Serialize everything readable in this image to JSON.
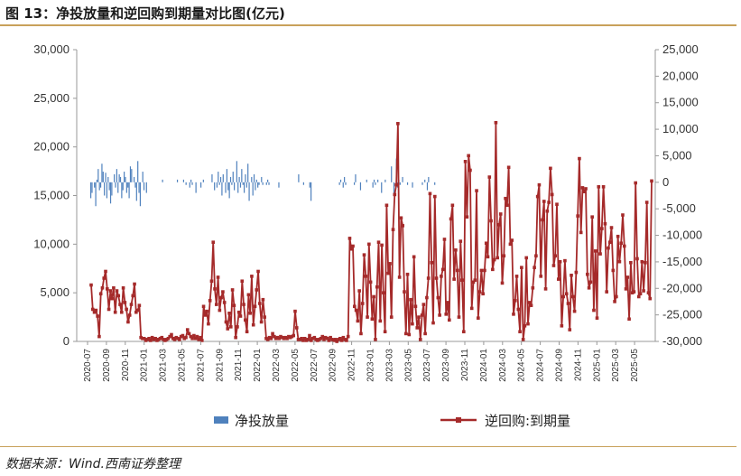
{
  "header": {
    "title": "图 13：净投放量和逆回购到期量对比图(亿元)"
  },
  "footer": {
    "source": "数据来源：Wind.西南证券整理"
  },
  "colors": {
    "bar": "#4f81bd",
    "line": "#a52a2a",
    "accent_rule": "#c8a15a"
  },
  "chart_data": {
    "type": "bar",
    "title": "",
    "legend_position": "bottom",
    "grid": false,
    "x_tick_labels": [
      "2020-07",
      "2020-09",
      "2020-11",
      "2021-01",
      "2021-03",
      "2021-05",
      "2021-07",
      "2021-09",
      "2021-11",
      "2022-01",
      "2022-03",
      "2022-05",
      "2022-07",
      "2022-09",
      "2022-11",
      "2023-01",
      "2023-03",
      "2023-05",
      "2023-07",
      "2023-09",
      "2023-11",
      "2024-01",
      "2024-03",
      "2024-05",
      "2024-07",
      "2024-09",
      "2024-11",
      "2025-01",
      "2025-03",
      "2025-05"
    ],
    "x_range": [
      "2020-07",
      "2025-06"
    ],
    "y_left": {
      "range": [
        0,
        30000
      ],
      "ticks": [
        "0",
        "5,000",
        "10,000",
        "15,000",
        "20,000",
        "25,000",
        "30,000"
      ]
    },
    "y_right": {
      "range": [
        -30000,
        25000
      ],
      "ticks": [
        "-30,000",
        "-25,000",
        "-20,000",
        "-15,000",
        "-10,000",
        "-5,000",
        "0",
        "5,000",
        "10,000",
        "15,000",
        "20,000",
        "25,000"
      ]
    },
    "series": [
      {
        "name": "净投放量",
        "type": "bar",
        "axis": "right",
        "values": [
          -3000,
          -2000,
          0,
          -1000,
          -4500,
          500,
          2500,
          -1500,
          -1000,
          3500,
          2000,
          -2500,
          1800,
          -3000,
          1000,
          -1500,
          -4000,
          -2500,
          0,
          1500,
          -1000,
          2500,
          -2000,
          1500,
          1000,
          -3000,
          -1500,
          2000,
          1000,
          -2000,
          -1000,
          -3000,
          3000,
          2500,
          0,
          1000,
          -1000,
          -3500,
          4000,
          -2000,
          -4500,
          0,
          2000,
          -1500,
          0,
          -2000,
          0,
          0,
          0,
          0,
          0,
          0,
          0,
          0,
          0,
          0,
          0,
          0,
          500,
          0,
          0,
          0,
          0,
          0,
          0,
          0,
          0,
          0,
          0,
          0,
          500,
          0,
          0,
          0,
          0,
          500,
          0,
          -500,
          0,
          0,
          -1000,
          500,
          -500,
          0,
          0,
          -2000,
          0,
          0,
          0,
          -1000,
          0,
          500,
          0,
          0,
          0,
          0,
          0,
          0,
          1500,
          0,
          -1500,
          0,
          -1000,
          2000,
          -500,
          1000,
          -2500,
          1500,
          0,
          -2000,
          2500,
          -1500,
          -3000,
          1000,
          -500,
          2000,
          -1500,
          0,
          4000,
          -2000,
          1000,
          -1000,
          2500,
          -500,
          -2000,
          1500,
          -1000,
          3500,
          -3500,
          0,
          1000,
          -2500,
          1500,
          -1500,
          500,
          -1000,
          -500,
          0,
          1000,
          -500,
          0,
          0,
          -500,
          500,
          -500,
          0,
          0,
          0,
          0,
          0,
          0,
          0,
          -1000,
          0,
          0,
          0,
          0,
          0,
          0,
          0,
          0,
          0,
          0,
          0,
          0,
          0,
          0,
          0,
          1500,
          0,
          0,
          0,
          -500,
          0,
          0,
          0,
          0,
          -1000,
          -3500,
          0,
          0,
          0,
          0,
          0,
          0,
          0,
          0,
          0,
          0,
          0,
          0,
          0,
          0,
          0,
          0,
          0,
          0,
          0,
          0,
          0,
          0,
          -500,
          500,
          0,
          -1000,
          1000,
          -500,
          0,
          0,
          0,
          0,
          0,
          0,
          -500,
          1500,
          0,
          0,
          0,
          -1500,
          0,
          0,
          0,
          0,
          500,
          0,
          0,
          0,
          0,
          -1000,
          500,
          -500,
          0,
          500,
          0,
          0,
          -2000,
          0,
          0,
          500,
          0,
          0,
          0,
          0,
          3000,
          0,
          -2500,
          0,
          4500,
          -1000,
          500,
          -500,
          0,
          1000,
          0,
          0,
          0,
          -500,
          0,
          0,
          0,
          -1000,
          0,
          0,
          0,
          0,
          0,
          0,
          0,
          -500,
          0,
          500,
          0,
          -1500,
          1000,
          0,
          0,
          0,
          0,
          -500,
          0,
          0,
          0,
          0,
          0,
          0,
          0,
          0,
          0,
          0,
          0,
          0,
          0,
          0,
          0,
          0,
          0,
          0,
          0,
          0,
          0,
          0,
          0,
          0,
          0,
          0,
          0,
          0,
          0,
          0,
          0,
          0,
          0,
          0,
          0,
          0,
          0,
          0,
          0,
          0,
          0,
          0,
          0,
          0,
          0,
          0,
          0,
          0,
          0,
          0,
          0,
          0,
          0,
          0,
          0,
          0,
          0,
          0,
          0,
          0,
          0,
          0,
          0,
          0,
          0,
          0,
          0,
          0,
          0,
          0,
          0,
          0,
          0,
          0,
          0,
          0,
          0,
          0,
          0,
          0,
          0,
          0,
          0,
          0,
          0,
          0,
          0,
          0,
          0,
          0,
          0,
          0,
          0,
          0,
          0,
          0,
          0,
          0,
          0,
          0,
          0,
          0,
          0,
          0,
          0,
          0,
          0,
          0,
          0,
          0,
          0,
          0,
          0,
          0,
          0,
          0,
          0,
          0,
          0,
          0,
          0,
          0,
          0,
          0,
          0,
          0,
          0,
          0,
          0,
          0,
          0,
          0,
          0,
          0,
          0,
          0,
          0,
          0,
          0,
          0,
          0,
          0,
          0,
          0,
          0,
          0,
          0,
          0,
          0,
          0,
          0,
          0,
          0,
          0,
          0,
          0,
          0,
          0,
          0,
          0,
          0,
          0,
          0,
          0,
          0,
          0,
          0,
          0,
          0,
          0,
          0,
          0,
          0,
          0
        ]
      },
      {
        "name": "逆回购:到期量",
        "type": "line",
        "axis": "left",
        "values": [
          5800,
          3300,
          3000,
          3200,
          2600,
          500,
          4900,
          5500,
          6500,
          7200,
          5400,
          3300,
          5200,
          4400,
          5500,
          3000,
          5200,
          4700,
          3800,
          3000,
          5500,
          4000,
          3300,
          2000,
          2700,
          3800,
          4700,
          5900,
          3000,
          3200,
          3700,
          400,
          300,
          300,
          100,
          200,
          300,
          100,
          400,
          200,
          300,
          100,
          200,
          300,
          400,
          200,
          100,
          200,
          300,
          500,
          700,
          300,
          200,
          400,
          300,
          200,
          500,
          600,
          300,
          400,
          1200,
          800,
          500,
          300,
          600,
          300,
          500,
          200,
          400,
          100,
          3600,
          2700,
          3100,
          1800,
          4200,
          6200,
          10200,
          5400,
          3800,
          6600,
          3200,
          4500,
          5100,
          4000,
          2000,
          1300,
          2900,
          1500,
          5300,
          3700,
          400,
          1500,
          3000,
          2600,
          6200,
          3800,
          2200,
          1000,
          4800,
          2900,
          6700,
          1700,
          3600,
          5300,
          7200,
          3900,
          2000,
          4300,
          2500,
          300,
          200,
          400,
          300,
          800,
          500,
          300,
          400,
          300,
          500,
          400,
          300,
          400,
          300,
          500,
          400,
          500,
          600,
          3100,
          1400,
          200,
          200,
          300,
          100,
          300,
          100,
          200,
          600,
          100,
          300,
          400,
          200,
          100,
          200,
          300,
          500,
          200,
          400,
          300,
          100,
          400,
          200,
          100,
          200,
          0,
          200,
          300,
          100,
          400,
          200,
          100,
          500,
          10600,
          9500,
          9800,
          3600,
          3200,
          2100,
          5200,
          800,
          3900,
          8900,
          6700,
          2500,
          10000,
          6100,
          2300,
          4600,
          200,
          5600,
          10200,
          2100,
          9900,
          5000,
          1000,
          14000,
          7000,
          8000,
          2500,
          11500,
          15100,
          16100,
          22400,
          6600,
          12700,
          11900,
          5100,
          800,
          6900,
          700,
          4300,
          1800,
          8700,
          3600,
          1400,
          2500,
          200,
          2700,
          3800,
          800,
          4500,
          6500,
          15200,
          8100,
          1900,
          14900,
          6500,
          4500,
          2700,
          6700,
          7400,
          10500,
          2800,
          4000,
          2200,
          12600,
          14000,
          6400,
          9400,
          7300,
          2500,
          10300,
          6300,
          1000,
          18500,
          12800,
          19100,
          17600,
          3400,
          6100,
          6300,
          15500,
          2400,
          5100,
          7300,
          4900,
          7300,
          10100,
          8700,
          16900,
          12400,
          7400,
          8400,
          22500,
          8600,
          12000,
          13100,
          6000,
          8800,
          14700,
          14000,
          17900,
          10000,
          10400,
          2800,
          4200,
          6700,
          3300,
          1000,
          7600,
          200,
          1600,
          8600,
          1800,
          4000,
          3700,
          5500,
          7600,
          8800,
          14900,
          16100,
          6700,
          12500,
          14400,
          5400,
          13400,
          14300,
          17800,
          15100,
          7800,
          8800,
          14100,
          6400,
          8200,
          1600,
          4600,
          8300,
          4900,
          3900,
          1200,
          6800,
          4600,
          3100,
          7100,
          12900,
          18800,
          11200,
          15800,
          15400,
          15700,
          6900,
          5500,
          6100,
          12800,
          3200,
          9300,
          2400,
          15900,
          9000,
          11600,
          15900,
          12100,
          5100,
          9600,
          10200,
          11700,
          7300,
          4100,
          4600,
          10800,
          8200,
          10100,
          13000,
          9800,
          5400,
          6600,
          2300,
          8100,
          5000,
          5100,
          16300,
          8500,
          4600,
          4900,
          8200,
          5200,
          8100,
          14300,
          5000,
          4400,
          16500
        ]
      }
    ]
  }
}
